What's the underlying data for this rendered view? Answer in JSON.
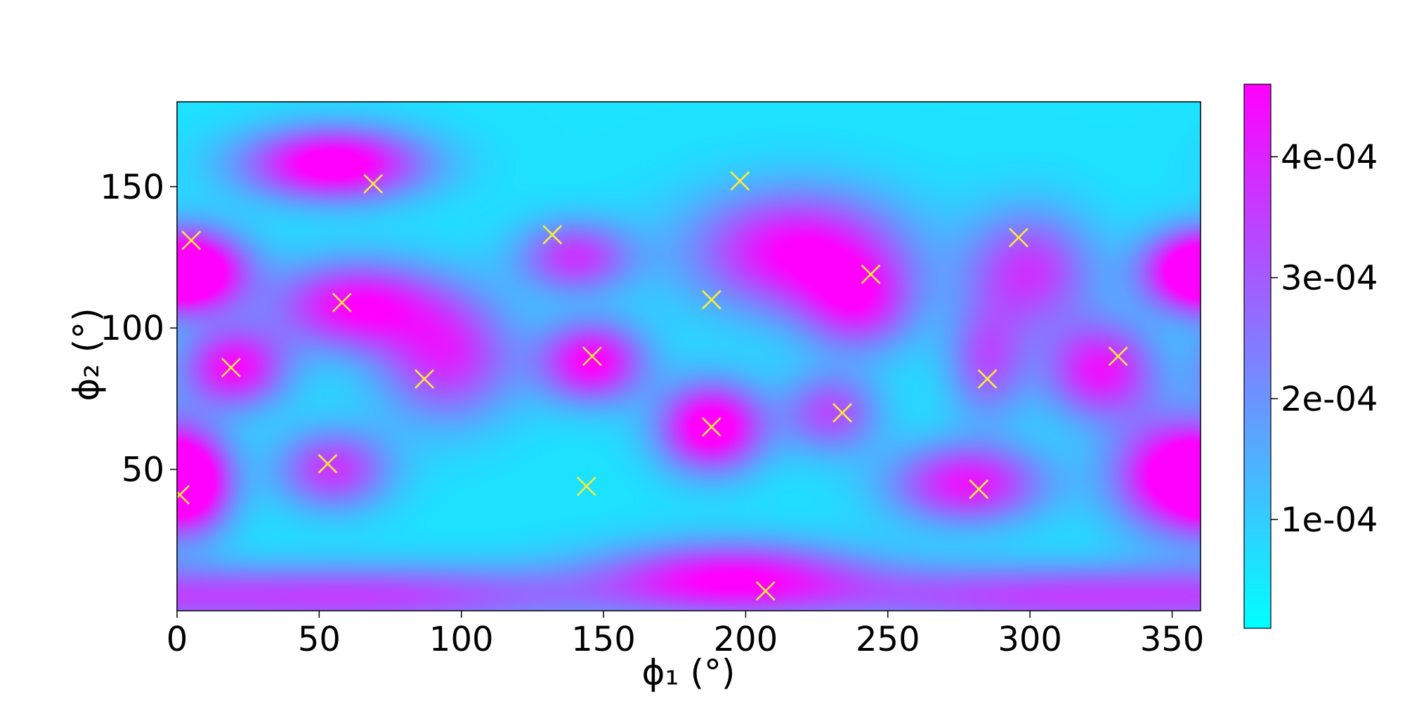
{
  "chart_data": {
    "type": "heatmap",
    "xlabel": "ϕ₁ (°)",
    "ylabel": "ϕ₂ (°)",
    "xlim": [
      0,
      360
    ],
    "ylim": [
      0,
      180
    ],
    "x_ticks": [
      "0",
      "50",
      "100",
      "150",
      "200",
      "250",
      "300",
      "350"
    ],
    "x_tick_values": [
      0,
      50,
      100,
      150,
      200,
      250,
      300,
      350
    ],
    "y_ticks": [
      "50",
      "100",
      "150"
    ],
    "y_tick_values": [
      50,
      100,
      150
    ],
    "grid": false,
    "colormap": "cool",
    "colormap_colors": [
      "#00ffff",
      "#ff00ff"
    ],
    "marker_color": "#ffee33",
    "colorbar": {
      "range": [
        1e-05,
        0.00046
      ],
      "tick_labels": [
        "1e-04",
        "2e-04",
        "3e-04",
        "4e-04"
      ],
      "tick_values": [
        0.0001,
        0.0002,
        0.0003,
        0.0004
      ]
    },
    "background_level": 6e-05,
    "peaks": [
      {
        "x": 55,
        "y": 158,
        "amplitude": 0.00046,
        "sx": 22,
        "sy": 9
      },
      {
        "x": 6,
        "y": 120,
        "amplitude": 0.00033,
        "sx": 14,
        "sy": 10
      },
      {
        "x": 358,
        "y": 120,
        "amplitude": 0.00033,
        "sx": 14,
        "sy": 10
      },
      {
        "x": 62,
        "y": 108,
        "amplitude": 0.00038,
        "sx": 20,
        "sy": 11
      },
      {
        "x": 20,
        "y": 86,
        "amplitude": 0.00038,
        "sx": 13,
        "sy": 10
      },
      {
        "x": 95,
        "y": 90,
        "amplitude": 0.00032,
        "sx": 17,
        "sy": 16
      },
      {
        "x": 140,
        "y": 125,
        "amplitude": 0.0003,
        "sx": 14,
        "sy": 9
      },
      {
        "x": 146,
        "y": 88,
        "amplitude": 0.0004,
        "sx": 13,
        "sy": 10
      },
      {
        "x": 188,
        "y": 65,
        "amplitude": 0.00046,
        "sx": 13,
        "sy": 11
      },
      {
        "x": 218,
        "y": 127,
        "amplitude": 0.0004,
        "sx": 26,
        "sy": 15
      },
      {
        "x": 240,
        "y": 108,
        "amplitude": 0.00028,
        "sx": 14,
        "sy": 12
      },
      {
        "x": 300,
        "y": 120,
        "amplitude": 0.0003,
        "sx": 16,
        "sy": 15
      },
      {
        "x": 285,
        "y": 88,
        "amplitude": 0.00024,
        "sx": 10,
        "sy": 14
      },
      {
        "x": 325,
        "y": 85,
        "amplitude": 0.00036,
        "sx": 14,
        "sy": 12
      },
      {
        "x": 350,
        "y": 48,
        "amplitude": 0.00043,
        "sx": 15,
        "sy": 14
      },
      {
        "x": 278,
        "y": 45,
        "amplitude": 0.00036,
        "sx": 19,
        "sy": 10
      },
      {
        "x": 230,
        "y": 70,
        "amplitude": 0.00026,
        "sx": 12,
        "sy": 10
      },
      {
        "x": 55,
        "y": 50,
        "amplitude": 0.0003,
        "sx": 14,
        "sy": 10
      },
      {
        "x": 5,
        "y": 45,
        "amplitude": 0.00036,
        "sx": 10,
        "sy": 12
      },
      {
        "x": 195,
        "y": 12,
        "amplitude": 0.00035,
        "sx": 32,
        "sy": 9
      },
      {
        "x": 75,
        "y": 5,
        "amplitude": 0.00026,
        "sx": 60,
        "sy": 8
      },
      {
        "x": 300,
        "y": 5,
        "amplitude": 0.00026,
        "sx": 60,
        "sy": 8
      }
    ],
    "markers": [
      {
        "x": 69,
        "y": 151
      },
      {
        "x": 198,
        "y": 152
      },
      {
        "x": 5,
        "y": 131
      },
      {
        "x": 132,
        "y": 133
      },
      {
        "x": 296,
        "y": 132
      },
      {
        "x": 244,
        "y": 119
      },
      {
        "x": 58,
        "y": 109
      },
      {
        "x": 188,
        "y": 110
      },
      {
        "x": 19,
        "y": 86
      },
      {
        "x": 146,
        "y": 90
      },
      {
        "x": 331,
        "y": 90
      },
      {
        "x": 87,
        "y": 82
      },
      {
        "x": 285,
        "y": 82
      },
      {
        "x": 234,
        "y": 70
      },
      {
        "x": 188,
        "y": 65
      },
      {
        "x": 53,
        "y": 52
      },
      {
        "x": 144,
        "y": 44
      },
      {
        "x": 282,
        "y": 43
      },
      {
        "x": 1,
        "y": 41
      },
      {
        "x": 207,
        "y": 7
      }
    ]
  }
}
